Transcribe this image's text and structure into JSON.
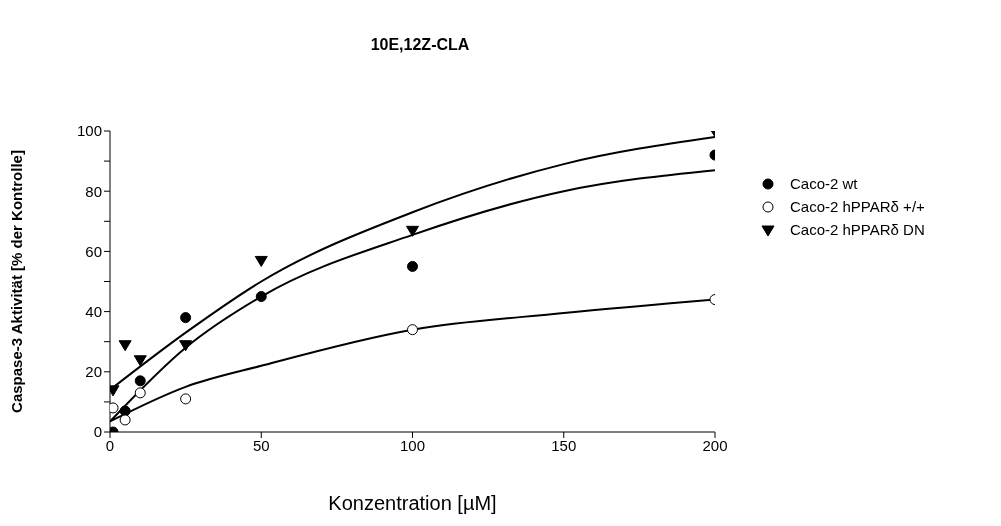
{
  "chart_data": {
    "type": "scatter",
    "title": "10E,12Z-CLA",
    "xlabel": "Konzentration [µM]",
    "ylabel": "Caspase-3 Aktivität [% der Kontrolle]",
    "xlim": [
      0,
      200
    ],
    "xticks": [
      0,
      50,
      100,
      150,
      200
    ],
    "ylim": [
      0,
      100
    ],
    "yticks": [
      0,
      {
        "value": 10,
        "label": null
      },
      20,
      {
        "value": 30,
        "label": null
      },
      40,
      {
        "value": 50,
        "label": null
      },
      60,
      {
        "value": 70,
        "label": null
      },
      80,
      {
        "value": 90,
        "label": null
      },
      100
    ],
    "legend": "right",
    "series": [
      {
        "name": "Caco-2 wt",
        "color": "#000000",
        "marker": "circle",
        "x": [
          1,
          5,
          10,
          25,
          50,
          100,
          200
        ],
        "values": [
          0,
          7,
          17,
          38,
          45,
          55,
          92
        ]
      },
      {
        "name": "Caco-2 hPPARδ +/+",
        "color": "#ffffff",
        "marker": "circle",
        "x": [
          1,
          5,
          10,
          25,
          100,
          200
        ],
        "values": [
          8,
          4,
          13,
          11,
          34,
          44
        ]
      },
      {
        "name": "Caco-2 hPPARδ DN",
        "color": "#000000",
        "marker": "triangle",
        "x": [
          1,
          5,
          10,
          25,
          50,
          100,
          200
        ],
        "values": [
          14,
          29,
          24,
          29,
          57,
          67,
          100
        ]
      },
      {
        "type": "line",
        "color": "#000000",
        "marker": "none",
        "x": [
          0,
          25,
          50,
          100,
          150,
          200
        ],
        "values": [
          3.5,
          28,
          45,
          65.5,
          80,
          87
        ]
      },
      {
        "type": "line",
        "color": "#000000",
        "marker": "none",
        "x": [
          0,
          25,
          50,
          100,
          150,
          200
        ],
        "values": [
          3.5,
          15,
          22,
          34,
          39.5,
          44
        ]
      },
      {
        "type": "line",
        "color": "#000000",
        "marker": "none",
        "x": [
          0,
          25,
          50,
          100,
          150,
          200
        ],
        "values": [
          14,
          33,
          50,
          73,
          89,
          98
        ]
      }
    ]
  }
}
